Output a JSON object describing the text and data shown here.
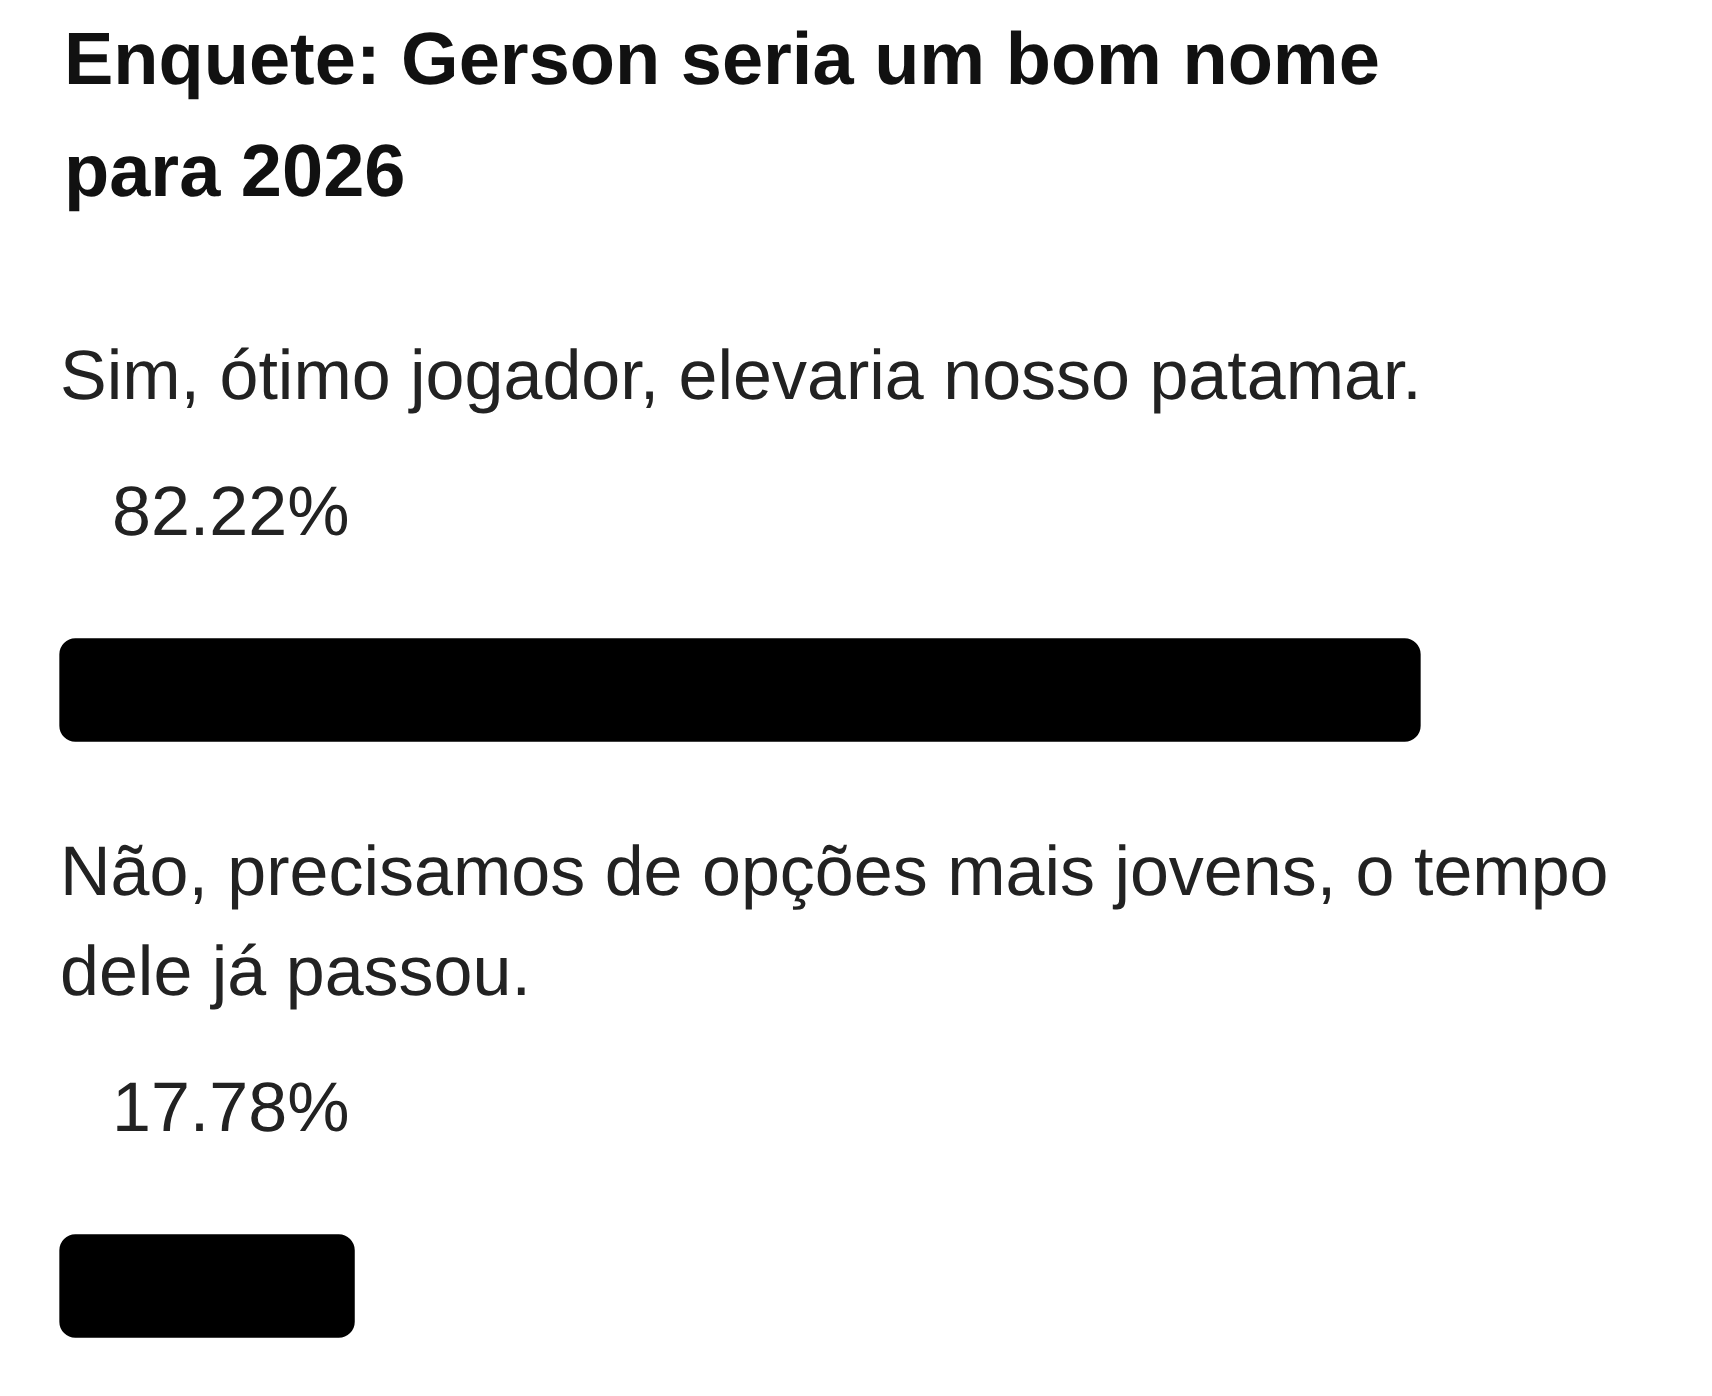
{
  "chart_data": {
    "type": "bar",
    "orientation": "horizontal",
    "title": "Enquete: Gerson seria um bom nome para 2026",
    "categories": [
      "Sim, ótimo jogador, elevaria nosso patamar.",
      "Não, precisamos de opções mais jovens, o tempo dele já passou."
    ],
    "values": [
      82.22,
      17.78
    ],
    "value_labels": [
      "82.22%",
      "17.78%"
    ],
    "color": "#000000",
    "tick_labels": "y"
  }
}
